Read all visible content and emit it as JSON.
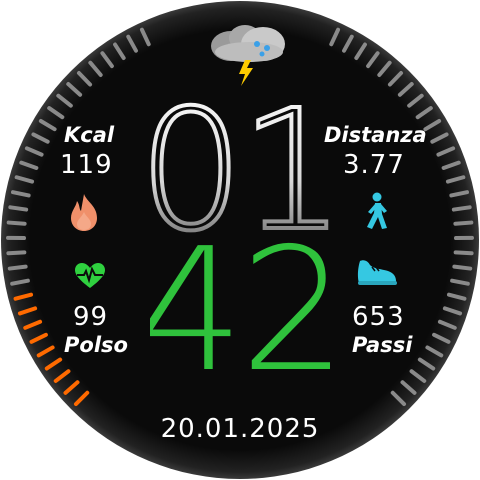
{
  "time": {
    "hours": "01",
    "minutes": "42"
  },
  "date": "20.01.2025",
  "calories": {
    "label": "Kcal",
    "value": "119"
  },
  "distance": {
    "label": "Distanza",
    "value": "3.77"
  },
  "pulse": {
    "label": "Polso",
    "value": "99"
  },
  "steps": {
    "label": "Passi",
    "value": "653"
  },
  "battery_level_fraction": 0.3,
  "steps_progress_fraction": 0.0,
  "colors": {
    "background": "#0c0c0c",
    "minutes": "#2fc23c",
    "calorie_icon": "#f0906a",
    "pulse_icon": "#2fd13f",
    "activity_icons": "#35c8e2",
    "battery_active": "#ff6a00",
    "gauge_inactive": "#8a8a8a"
  },
  "icons": {
    "weather": "thunderstorm-cloud-icon",
    "calories": "fire-icon",
    "distance": "walking-person-icon",
    "pulse": "heart-pulse-icon",
    "steps": "running-shoe-icon"
  }
}
